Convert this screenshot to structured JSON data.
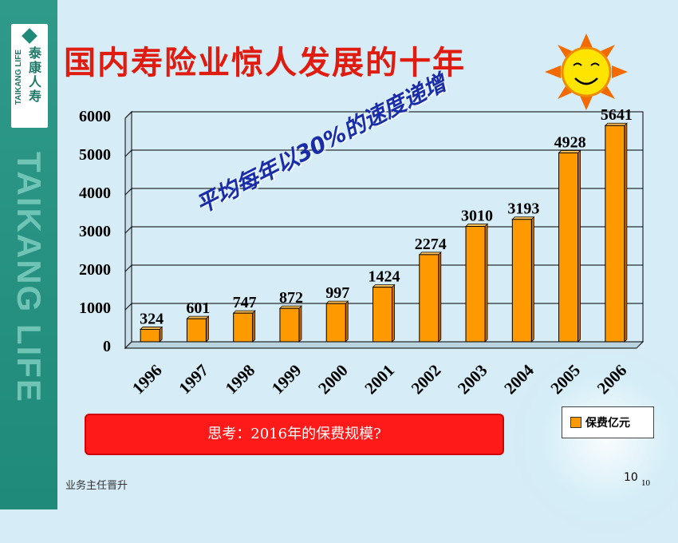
{
  "slide": {
    "title": "国内寿险业惊人发展的十年",
    "slogan": "平均每年以30%的速度递增",
    "question": "思考：2016年的保费规模?",
    "footer_left": "业务主任晋升",
    "page_number": "10",
    "page_number_small": "10"
  },
  "logo": {
    "cn": "泰康人寿",
    "en": "TAIKANG LIFE",
    "side_brand": "TAIKANG LIFE"
  },
  "colors": {
    "bar": "#ff9900",
    "title": "#e01b0f",
    "slogan": "#1a2da8",
    "sidebar": "#2f9a8a"
  },
  "chart_data": {
    "type": "bar",
    "categories": [
      "1996",
      "1997",
      "1998",
      "1999",
      "2000",
      "2001",
      "2002",
      "2003",
      "2004",
      "2005",
      "2006"
    ],
    "series": [
      {
        "name": "保费亿元",
        "values": [
          324,
          601,
          747,
          872,
          997,
          1424,
          2274,
          3010,
          3193,
          4928,
          5641
        ]
      }
    ],
    "ylim": [
      0,
      6000
    ],
    "yticks": [
      0,
      1000,
      2000,
      3000,
      4000,
      5000,
      6000
    ],
    "grid": true,
    "legend": "bottom-right",
    "data_labels": true
  }
}
